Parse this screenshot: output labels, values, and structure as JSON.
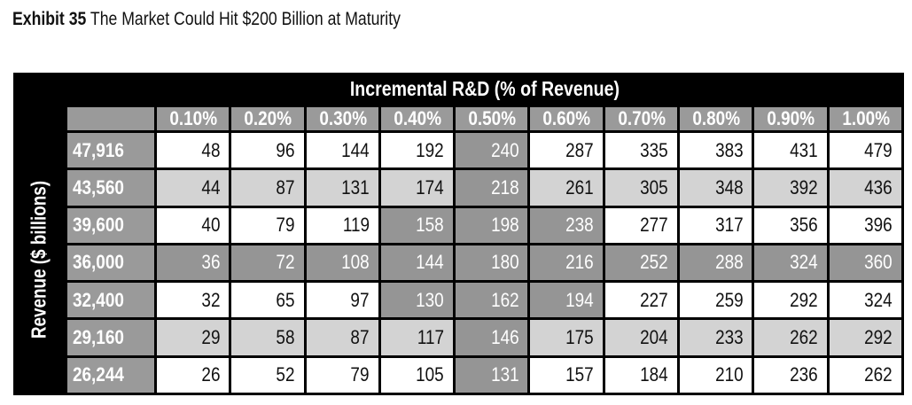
{
  "title": {
    "label": "Exhibit 35",
    "text": "The Market Could Hit $200 Billion at Maturity"
  },
  "chart_data": {
    "type": "table",
    "column_group_label": "Incremental R&D (% of Revenue)",
    "row_group_label": "Revenue ($ billions)",
    "columns": [
      "0.10%",
      "0.20%",
      "0.30%",
      "0.40%",
      "0.50%",
      "0.60%",
      "0.70%",
      "0.80%",
      "0.90%",
      "1.00%"
    ],
    "rows": [
      {
        "label": "47,916",
        "values": [
          48,
          96,
          144,
          192,
          240,
          287,
          335,
          383,
          431,
          479
        ],
        "highlight": [
          4
        ]
      },
      {
        "label": "43,560",
        "values": [
          44,
          87,
          131,
          174,
          218,
          261,
          305,
          348,
          392,
          436
        ],
        "highlight": [
          4
        ]
      },
      {
        "label": "39,600",
        "values": [
          40,
          79,
          119,
          158,
          198,
          238,
          277,
          317,
          356,
          396
        ],
        "highlight": [
          3,
          4,
          5
        ]
      },
      {
        "label": "36,000",
        "values": [
          36,
          72,
          108,
          144,
          180,
          216,
          252,
          288,
          324,
          360
        ],
        "highlight": [
          0,
          1,
          2,
          3,
          4,
          5,
          6,
          7,
          8,
          9
        ]
      },
      {
        "label": "32,400",
        "values": [
          32,
          65,
          97,
          130,
          162,
          194,
          227,
          259,
          292,
          324
        ],
        "highlight": [
          3,
          4,
          5
        ]
      },
      {
        "label": "29,160",
        "values": [
          29,
          58,
          87,
          117,
          146,
          175,
          204,
          233,
          262,
          292
        ],
        "highlight": [
          4
        ]
      },
      {
        "label": "26,244",
        "values": [
          26,
          52,
          79,
          105,
          131,
          157,
          184,
          210,
          236,
          262
        ],
        "highlight": [
          4
        ]
      }
    ],
    "colors": {
      "frame": "#000000",
      "header_cell": "#9a9a9a",
      "highlight_cell": "#959595",
      "row_light": "#ffffff",
      "row_dark": "#d3d3d3"
    }
  }
}
